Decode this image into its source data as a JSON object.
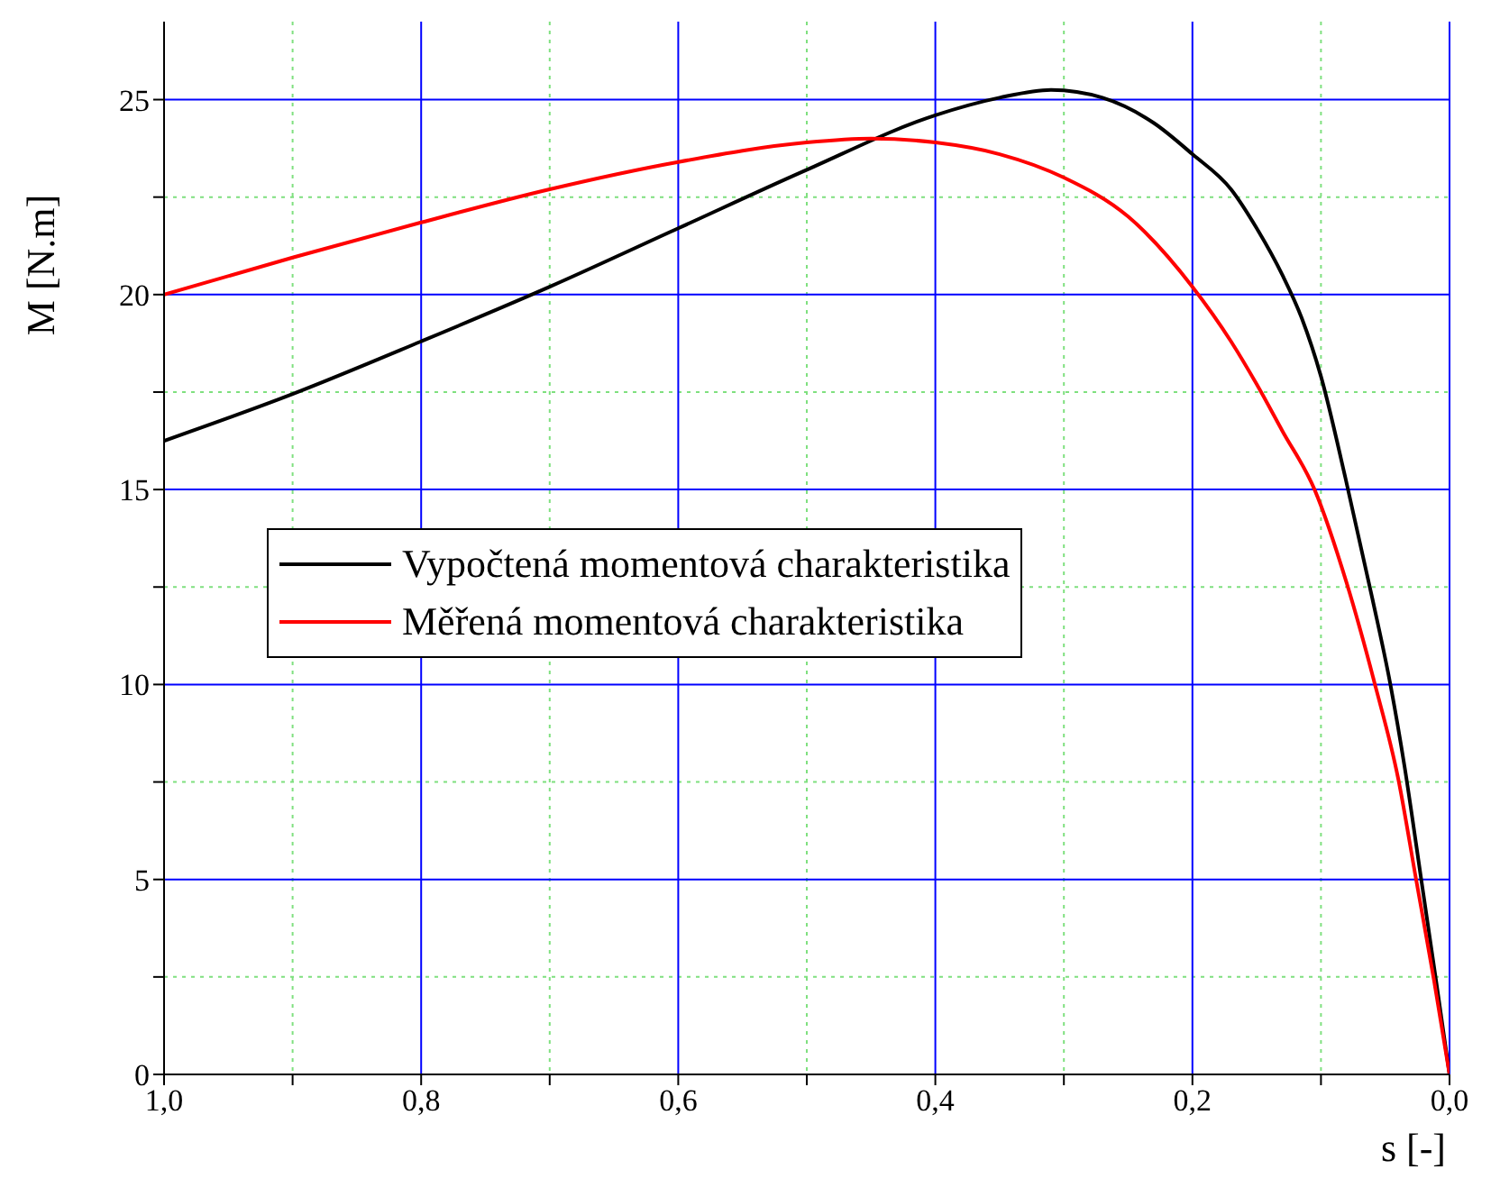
{
  "chart_data": {
    "type": "line",
    "xlabel": "s [-]",
    "ylabel": "M [N.m]",
    "xlim": [
      1,
      0
    ],
    "ylim": [
      0,
      27
    ],
    "xticks": [
      {
        "value": 1,
        "label": "1,0"
      },
      {
        "value": 0.9,
        "label": null
      },
      {
        "value": 0.8,
        "label": "0,8"
      },
      {
        "value": 0.7,
        "label": null
      },
      {
        "value": 0.6,
        "label": "0,6"
      },
      {
        "value": 0.5,
        "label": null
      },
      {
        "value": 0.4,
        "label": "0,4"
      },
      {
        "value": 0.3,
        "label": null
      },
      {
        "value": 0.2,
        "label": "0,2"
      },
      {
        "value": 0.1,
        "label": null
      },
      {
        "value": 0,
        "label": "0,0"
      }
    ],
    "yticks": [
      0,
      {
        "value": 2.5,
        "label": null
      },
      5,
      {
        "value": 7.5,
        "label": null
      },
      10,
      {
        "value": 12.5,
        "label": null
      },
      15,
      {
        "value": 17.5,
        "label": null
      },
      20,
      {
        "value": 22.5,
        "label": null
      },
      25
    ],
    "grid": true,
    "legend": "left",
    "marker": "none",
    "line_style": "solid",
    "series": [
      {
        "name": "Vypočtená momentová charakteristika",
        "color": "#000000",
        "x": [
          1,
          0.9,
          0.8,
          0.7,
          0.6,
          0.5,
          0.4,
          0.35,
          0.31,
          0.27,
          0.23,
          0.2,
          0.17,
          0.15,
          0.13,
          0.115,
          0.1,
          0.081,
          0.06,
          0.046,
          0.035,
          0.022,
          0.01,
          0
        ],
        "values": [
          16.25,
          17.45,
          18.8,
          20.2,
          21.7,
          23.2,
          24.6,
          25.05,
          25.25,
          25.05,
          24.4,
          23.6,
          22.7,
          21.7,
          20.5,
          19.4,
          17.9,
          15.3,
          12.2,
          10,
          7.9,
          5,
          2.3,
          0
        ]
      },
      {
        "name": "Měřená momentová charakteristika",
        "color": "#ff0000",
        "x": [
          1,
          0.9,
          0.8,
          0.7,
          0.6,
          0.5,
          0.45,
          0.4,
          0.35,
          0.3,
          0.25,
          0.2,
          0.17,
          0.15,
          0.13,
          0.105,
          0.08,
          0.058,
          0.04,
          0.026,
          0.012,
          0
        ],
        "values": [
          20,
          20.95,
          21.85,
          22.7,
          23.4,
          23.9,
          24.0,
          23.9,
          23.6,
          23.0,
          22.0,
          20.2,
          18.8,
          17.7,
          16.5,
          15,
          12.6,
          10,
          7.6,
          5,
          2.4,
          0
        ]
      }
    ]
  }
}
